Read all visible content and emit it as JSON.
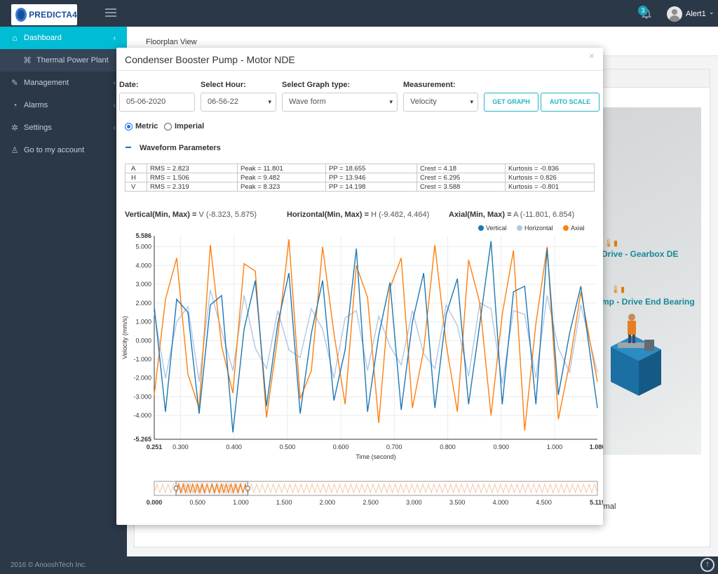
{
  "app": {
    "brand": "PREDICTA4",
    "notifications_count": "3",
    "user_name": "Alert1"
  },
  "sidebar": {
    "items": [
      {
        "label": "Dashboard",
        "icon": "home-icon"
      },
      {
        "label": "Thermal Power Plant",
        "icon": "tag-icon"
      },
      {
        "label": "Management",
        "icon": "wrench-icon"
      },
      {
        "label": "Alarms",
        "icon": "bell-icon"
      },
      {
        "label": "Settings",
        "icon": "gear-icon"
      },
      {
        "label": "Go to my account",
        "icon": "user-icon"
      }
    ]
  },
  "footer": {
    "text": "2016 © AnooshTech Inc."
  },
  "page": {
    "title": "Floorplan View",
    "floor_labels": [
      "Drive - Gearbox DE",
      "mp - Drive End Bearing"
    ],
    "partial_text": "rmal"
  },
  "modal": {
    "title": "Condenser Booster Pump - Motor NDE",
    "close": "×"
  },
  "form": {
    "date_label": "Date:",
    "date_value": "05-06-2020",
    "hour_label": "Select Hour:",
    "hour_value": "06-56-22",
    "graph_type_label": "Select Graph type:",
    "graph_type_value": "Wave form",
    "measurement_label": "Measurement:",
    "measurement_value": "Velocity",
    "get_graph": "GET GRAPH",
    "auto_scale": "AUTO SCALE",
    "units": [
      {
        "label": "Metric",
        "selected": true
      },
      {
        "label": "Imperial",
        "selected": false
      }
    ]
  },
  "parameters": {
    "title": "Waveform Parameters",
    "rows": [
      {
        "axis": "A",
        "rms": "RMS = 2.823",
        "peak": "Peak = 11.801",
        "pp": "PP = 18.655",
        "crest": "Crest = 4.18",
        "kurtosis": "Kurtosis = -0.836"
      },
      {
        "axis": "H",
        "rms": "RMS = 1.506",
        "peak": "Peak = 9.482",
        "pp": "PP = 13.946",
        "crest": "Crest = 6.295",
        "kurtosis": "Kurtosis = 0.826"
      },
      {
        "axis": "V",
        "rms": "RMS = 2.319",
        "peak": "Peak = 8.323",
        "pp": "PP = 14.198",
        "crest": "Crest = 3.588",
        "kurtosis": "Kurtosis = -0.801"
      }
    ]
  },
  "minmax": [
    {
      "label": "Vertical(Min, Max) =",
      "value": "V (-8.323, 5.875)"
    },
    {
      "label": "Horizontal(Min, Max) =",
      "value": "H (-9.482, 4.464)"
    },
    {
      "label": "Axial(Min, Max) =",
      "value": "A (-11.801, 6.854)"
    }
  ],
  "colors": {
    "vertical": "#1f77b4",
    "horizontal": "#aec7e8",
    "axial": "#ff7f0e",
    "accent": "#00bcd4",
    "sidebar_bg": "#2b3848"
  },
  "chart_data": {
    "type": "line",
    "xlabel": "Time (second)",
    "ylabel": "Velocity (mm/s)",
    "xlim": [
      0.251,
      1.08
    ],
    "ylim": [
      -5.265,
      5.586
    ],
    "x_ticks": [
      0.3,
      0.4,
      0.5,
      0.6,
      0.7,
      0.8,
      0.9,
      1.0
    ],
    "y_ticks": [
      -4.0,
      -3.0,
      -2.0,
      -1.0,
      0.0,
      1.0,
      2.0,
      3.0,
      4.0,
      5.0
    ],
    "x_tick_labels": [
      "0.251",
      "0.300",
      "0.400",
      "0.500",
      "0.600",
      "0.700",
      "0.800",
      "0.900",
      "1.000",
      "1.080"
    ],
    "y_tick_labels": [
      "5.586",
      "5.000",
      "4.000",
      "3.000",
      "2.000",
      "1.000",
      "0.000",
      "-1.000",
      "-2.000",
      "-3.000",
      "-4.000",
      "-5.265"
    ],
    "legend_position": "top-right",
    "grid": true,
    "x": [
      0.251,
      0.272,
      0.293,
      0.314,
      0.335,
      0.356,
      0.377,
      0.398,
      0.419,
      0.44,
      0.461,
      0.482,
      0.503,
      0.524,
      0.545,
      0.566,
      0.587,
      0.608,
      0.629,
      0.65,
      0.671,
      0.692,
      0.713,
      0.734,
      0.755,
      0.776,
      0.797,
      0.818,
      0.839,
      0.86,
      0.881,
      0.902,
      0.923,
      0.944,
      0.965,
      0.986,
      1.007,
      1.028,
      1.049,
      1.08
    ],
    "series": [
      {
        "name": "Vertical",
        "values": [
          1.8,
          -3.8,
          2.2,
          1.5,
          -3.9,
          1.9,
          2.4,
          -4.9,
          0.6,
          3.2,
          -3.5,
          0.9,
          3.6,
          -3.9,
          0.4,
          3.2,
          -3.2,
          -0.5,
          4.9,
          -3.8,
          0.3,
          3.1,
          -3.7,
          1.0,
          3.6,
          -3.6,
          1.4,
          3.3,
          -3.4,
          0.9,
          5.3,
          -3.4,
          2.6,
          2.9,
          -3.4,
          4.9,
          -2.9,
          0.4,
          2.9,
          -3.6
        ]
      },
      {
        "name": "Horizontal",
        "values": [
          1.5,
          -2.0,
          1.0,
          1.8,
          -2.2,
          2.7,
          0.5,
          -1.6,
          2.4,
          -0.4,
          -1.5,
          1.6,
          -0.5,
          -0.9,
          1.7,
          0.6,
          -2.0,
          1.2,
          1.6,
          -1.6,
          1.3,
          -0.3,
          -1.3,
          1.6,
          -0.7,
          -1.5,
          1.9,
          0.8,
          -1.9,
          2.0,
          1.7,
          -2.3,
          1.6,
          1.4,
          -2.0,
          2.4,
          -0.4,
          -1.7,
          1.9,
          -1.7
        ]
      },
      {
        "name": "Axial",
        "values": [
          -2.9,
          2.2,
          4.4,
          -1.8,
          -3.6,
          5.1,
          -0.3,
          -2.8,
          4.1,
          3.7,
          -4.1,
          0.2,
          5.4,
          -3.1,
          -1.6,
          5.0,
          0.4,
          -3.4,
          4.0,
          2.3,
          -4.4,
          2.8,
          4.4,
          -3.6,
          -0.5,
          5.1,
          -0.2,
          -3.8,
          4.3,
          2.0,
          -4.0,
          1.4,
          4.8,
          -4.8,
          0.9,
          5.0,
          -4.2,
          -1.2,
          2.6,
          -2.2
        ]
      }
    ],
    "overview": {
      "xlim": [
        0.0,
        5.119
      ],
      "x_tick_labels": [
        "0.000",
        "0.500",
        "1.000",
        "1.500",
        "2.000",
        "2.500",
        "3.000",
        "3.500",
        "4.000",
        "4.500",
        "5.119"
      ],
      "selection": [
        0.251,
        1.08
      ]
    }
  }
}
